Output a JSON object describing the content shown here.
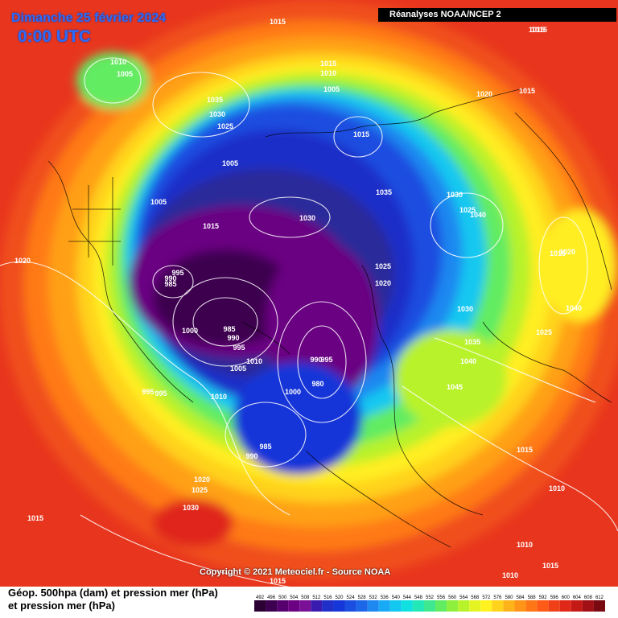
{
  "header": {
    "date": "Dimanche 25 février 2024",
    "time": "0:00 UTC",
    "source": "Réanalyses NOAA/NCEP 2"
  },
  "footer": {
    "copyright": "Copyright © 2021 Meteociel.fr - Source NOAA",
    "line1": "Géop. 500hpa (dam) et pression mer (hPa)",
    "line2": "et pression mer (hPa)"
  },
  "legend": {
    "values": [
      "492",
      "496",
      "500",
      "504",
      "508",
      "512",
      "516",
      "520",
      "524",
      "528",
      "532",
      "536",
      "540",
      "544",
      "548",
      "552",
      "556",
      "560",
      "564",
      "568",
      "572",
      "576",
      "580",
      "584",
      "588",
      "592",
      "596",
      "600",
      "604",
      "608",
      "612"
    ],
    "colors": [
      "#2b0033",
      "#3d0050",
      "#55006e",
      "#6b0082",
      "#7a1095",
      "#3a1bb0",
      "#1f2fc8",
      "#1536d8",
      "#1a4ee0",
      "#1c66e8",
      "#1e88f0",
      "#19aaf5",
      "#12c8f0",
      "#10e0e0",
      "#22e8b8",
      "#3de890",
      "#62ec62",
      "#8ef03c",
      "#b8f22a",
      "#e4f422",
      "#fff21e",
      "#ffd21c",
      "#ffb31a",
      "#ff9418",
      "#ff7616",
      "#ff5a16",
      "#f04018",
      "#e02818",
      "#c41a16",
      "#a01014",
      "#7a0a12"
    ]
  },
  "map": {
    "pressure_labels": [
      {
        "text": "1015"
      },
      {
        "text": "1010"
      },
      {
        "text": "1005"
      },
      {
        "text": "1035"
      },
      {
        "text": "1030"
      },
      {
        "text": "1025"
      },
      {
        "text": "1015"
      },
      {
        "text": "1010"
      },
      {
        "text": "1005"
      },
      {
        "text": "1015"
      },
      {
        "text": "1015"
      },
      {
        "text": "1020"
      },
      {
        "text": "1015"
      },
      {
        "text": "1005"
      },
      {
        "text": "1005"
      },
      {
        "text": "1015"
      },
      {
        "text": "1030"
      },
      {
        "text": "1035"
      },
      {
        "text": "1030"
      },
      {
        "text": "1025"
      },
      {
        "text": "1040"
      },
      {
        "text": "1015"
      },
      {
        "text": "1020"
      },
      {
        "text": "995"
      },
      {
        "text": "990"
      },
      {
        "text": "985"
      },
      {
        "text": "1025"
      },
      {
        "text": "1020"
      },
      {
        "text": "1020"
      },
      {
        "text": "1000"
      },
      {
        "text": "985"
      },
      {
        "text": "990"
      },
      {
        "text": "995"
      },
      {
        "text": "1010"
      },
      {
        "text": "1005"
      },
      {
        "text": "990"
      },
      {
        "text": "995"
      },
      {
        "text": "1030"
      },
      {
        "text": "1040"
      },
      {
        "text": "1025"
      },
      {
        "text": "1035"
      },
      {
        "text": "1040"
      },
      {
        "text": "995"
      },
      {
        "text": "995"
      },
      {
        "text": "1010"
      },
      {
        "text": "1000"
      },
      {
        "text": "980"
      },
      {
        "text": "1045"
      },
      {
        "text": "985"
      },
      {
        "text": "990"
      },
      {
        "text": "1015"
      },
      {
        "text": "1020"
      },
      {
        "text": "1025"
      },
      {
        "text": "1030"
      },
      {
        "text": "1010"
      },
      {
        "text": "1015"
      },
      {
        "text": "1010"
      },
      {
        "text": "1015"
      },
      {
        "text": "1010"
      },
      {
        "text": "1015"
      },
      {
        "text": "1015"
      }
    ]
  }
}
